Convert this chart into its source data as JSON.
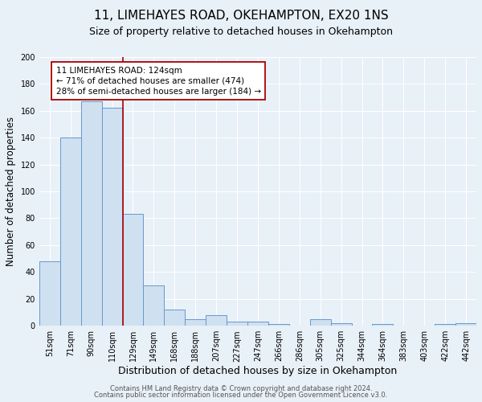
{
  "title": "11, LIMEHAYES ROAD, OKEHAMPTON, EX20 1NS",
  "subtitle": "Size of property relative to detached houses in Okehampton",
  "xlabel": "Distribution of detached houses by size in Okehampton",
  "ylabel": "Number of detached properties",
  "bar_labels": [
    "51sqm",
    "71sqm",
    "90sqm",
    "110sqm",
    "129sqm",
    "149sqm",
    "168sqm",
    "188sqm",
    "207sqm",
    "227sqm",
    "247sqm",
    "266sqm",
    "286sqm",
    "305sqm",
    "325sqm",
    "344sqm",
    "364sqm",
    "383sqm",
    "403sqm",
    "422sqm",
    "442sqm"
  ],
  "bar_heights": [
    48,
    140,
    167,
    162,
    83,
    30,
    12,
    5,
    8,
    3,
    3,
    1,
    0,
    5,
    2,
    0,
    1,
    0,
    0,
    1,
    2
  ],
  "bar_color": "#cfe0f0",
  "bar_edge_color": "#6699cc",
  "vline_color": "#aa0000",
  "annotation_text_line1": "11 LIMEHAYES ROAD: 124sqm",
  "annotation_text_line2": "← 71% of detached houses are smaller (474)",
  "annotation_text_line3": "28% of semi-detached houses are larger (184) →",
  "annotation_box_edge_color": "#aa0000",
  "ylim": [
    0,
    200
  ],
  "yticks": [
    0,
    20,
    40,
    60,
    80,
    100,
    120,
    140,
    160,
    180,
    200
  ],
  "bg_color": "#e8f0f8",
  "footer_line1": "Contains HM Land Registry data © Crown copyright and database right 2024.",
  "footer_line2": "Contains public sector information licensed under the Open Government Licence v3.0.",
  "title_fontsize": 11,
  "subtitle_fontsize": 9,
  "xlabel_fontsize": 9,
  "ylabel_fontsize": 8.5,
  "tick_fontsize": 7,
  "annotation_fontsize": 7.5,
  "footer_fontsize": 6
}
